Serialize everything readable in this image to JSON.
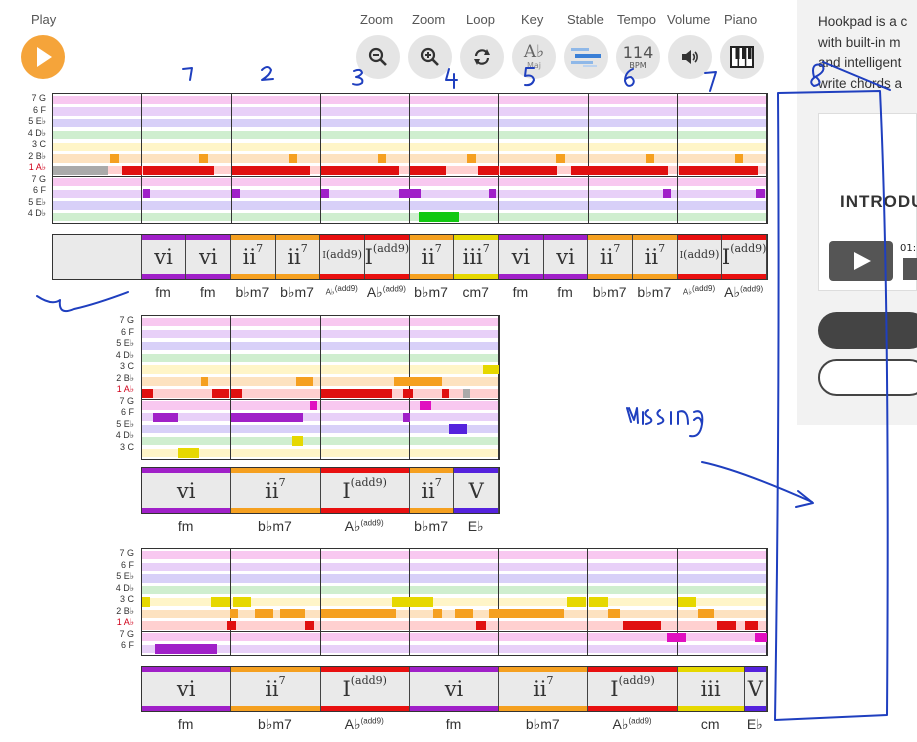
{
  "toolbar": {
    "play_label": "Play",
    "zoom_out_label": "Zoom",
    "zoom_in_label": "Zoom",
    "loop_label": "Loop",
    "key_label": "Key",
    "stable_label": "Stable",
    "tempo_label": "Tempo",
    "volume_label": "Volume",
    "piano_label": "Piano",
    "key_value": "A♭",
    "key_mode": "Maj",
    "tempo_value": "114",
    "tempo_unit": "BPM",
    "accent_color": "#f5a43a"
  },
  "row_labels_long": [
    "7 G",
    "6 F",
    "5 E♭",
    "4 D♭",
    "3 C",
    "2 B♭",
    "1 A♭",
    "7 G",
    "6 F",
    "5 E♭",
    "4 D♭"
  ],
  "row_labels_mid": [
    "7 G",
    "6 F",
    "5 E♭",
    "4 D♭",
    "3 C",
    "2 B♭",
    "1 A♭",
    "7 G",
    "6 F",
    "5 E♭",
    "4 D♭",
    "3 C"
  ],
  "row_labels_short": [
    "7 G",
    "6 F",
    "5 E♭",
    "4 D♭",
    "3 C",
    "2 B♭",
    "1 A♭",
    "7 G",
    "6 F"
  ],
  "section1": {
    "chords": [
      {
        "rn": "vi",
        "sup": ""
      },
      {
        "rn": "vi",
        "sup": ""
      },
      {
        "rn": "ii",
        "sup": "7"
      },
      {
        "rn": "ii",
        "sup": "7"
      },
      {
        "rn": "I",
        "sup": "(add9)"
      },
      {
        "rn": "I",
        "sup": "(add9)"
      },
      {
        "rn": "ii",
        "sup": "7"
      },
      {
        "rn": "iii",
        "sup": "7"
      },
      {
        "rn": "vi",
        "sup": ""
      },
      {
        "rn": "vi",
        "sup": ""
      },
      {
        "rn": "ii",
        "sup": "7"
      },
      {
        "rn": "ii",
        "sup": "7"
      },
      {
        "rn": "I",
        "sup": "(add9)"
      },
      {
        "rn": "I",
        "sup": "(add9)"
      }
    ],
    "names": [
      {
        "root": "fm",
        "sup": ""
      },
      {
        "root": "fm",
        "sup": ""
      },
      {
        "root": "b♭m7",
        "sup": ""
      },
      {
        "root": "b♭m7",
        "sup": ""
      },
      {
        "root": "A♭",
        "sup": "(add9)"
      },
      {
        "root": "A♭",
        "sup": "(add9)"
      },
      {
        "root": "b♭m7",
        "sup": ""
      },
      {
        "root": "cm7",
        "sup": ""
      },
      {
        "root": "fm",
        "sup": ""
      },
      {
        "root": "fm",
        "sup": ""
      },
      {
        "root": "b♭m7",
        "sup": ""
      },
      {
        "root": "b♭m7",
        "sup": ""
      },
      {
        "root": "A♭",
        "sup": "(add9)"
      },
      {
        "root": "A♭",
        "sup": "(add9)"
      }
    ]
  },
  "section2": {
    "chords": [
      {
        "rn": "vi",
        "sup": ""
      },
      {
        "rn": "ii",
        "sup": "7"
      },
      {
        "rn": "I",
        "sup": "(add9)"
      },
      {
        "rn": "ii",
        "sup": "7"
      },
      {
        "rn": "V",
        "sup": ""
      }
    ],
    "names": [
      {
        "root": "fm",
        "sup": ""
      },
      {
        "root": "b♭m7",
        "sup": ""
      },
      {
        "root": "A♭",
        "sup": "(add9)"
      },
      {
        "root": "b♭m7",
        "sup": ""
      },
      {
        "root": "E♭",
        "sup": ""
      }
    ]
  },
  "section3": {
    "chords": [
      {
        "rn": "vi",
        "sup": ""
      },
      {
        "rn": "ii",
        "sup": "7"
      },
      {
        "rn": "I",
        "sup": "(add9)"
      },
      {
        "rn": "vi",
        "sup": ""
      },
      {
        "rn": "ii",
        "sup": "7"
      },
      {
        "rn": "I",
        "sup": "(add9)"
      },
      {
        "rn": "iii",
        "sup": ""
      },
      {
        "rn": "V",
        "sup": ""
      }
    ],
    "names": [
      {
        "root": "fm",
        "sup": ""
      },
      {
        "root": "b♭m7",
        "sup": ""
      },
      {
        "root": "A♭",
        "sup": "(add9)"
      },
      {
        "root": "fm",
        "sup": ""
      },
      {
        "root": "b♭m7",
        "sup": ""
      },
      {
        "root": "A♭",
        "sup": "(add9)"
      },
      {
        "root": "cm",
        "sup": ""
      },
      {
        "root": "E♭",
        "sup": ""
      }
    ]
  },
  "sidebar": {
    "text_lines": [
      "Hookpad is a c",
      "with built-in m",
      "and intelligent",
      "write chords a"
    ],
    "card_title": "INTRODU",
    "video_time": "01:"
  },
  "annotations": {
    "numbers": [
      "1",
      "2",
      "3",
      "4",
      "5",
      "6",
      "7",
      "8"
    ],
    "note": "missing"
  },
  "colors": {
    "vi": "#a020c8",
    "ii": "#f5a020",
    "I": "#e81010",
    "iii": "#e6d800",
    "V": "#5522dd",
    "ink": "#1f3fbf"
  }
}
